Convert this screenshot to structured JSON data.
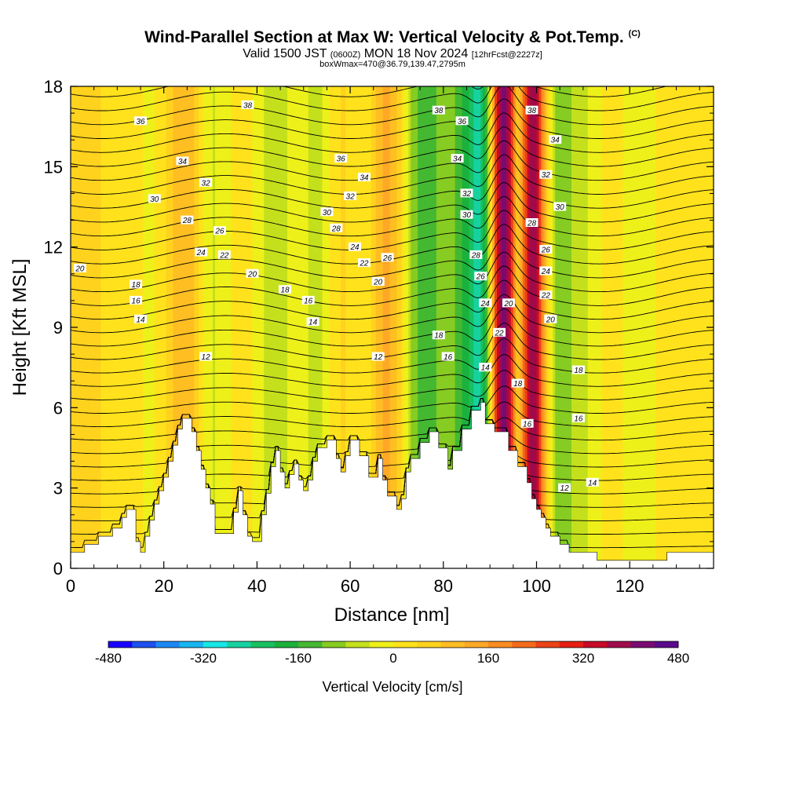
{
  "header": {
    "title": "Wind-Parallel Section at Max W: Vertical Velocity & Pot.Temp.",
    "copyright": "(C)",
    "valid_pre": "Valid 1500 JST",
    "valid_z": "(0600Z)",
    "valid_date": "MON 18 Nov 2024",
    "valid_fcst": "[12hrFcst@2227z]",
    "box_info": "boxWmax=470@36.79,139.47,2795m"
  },
  "colors": {
    "terrain": "#ffffff",
    "plot_bg": "#e6ea1e",
    "contour": "#000000",
    "scale": [
      "#1a00ff",
      "#1c50f0",
      "#1d88f5",
      "#18b5f0",
      "#17e6e6",
      "#16d2a0",
      "#18c060",
      "#1ab23c",
      "#45b832",
      "#86cc22",
      "#c4e01c",
      "#eef01a",
      "#ffe21c",
      "#ffd21e",
      "#ffbe22",
      "#ffa826",
      "#fb8c20",
      "#f46a1c",
      "#ec4216",
      "#e61e12",
      "#c80a28",
      "#a00a4a",
      "#7a0a72",
      "#5a0a8c"
    ]
  },
  "chart_data": {
    "type": "heatmap",
    "xlabel": "Distance [nm]",
    "ylabel": "Height [Kft MSL]",
    "xlim": [
      0,
      138
    ],
    "ylim": [
      0,
      18
    ],
    "xticks": [
      0,
      20,
      40,
      60,
      80,
      100,
      120
    ],
    "yticks": [
      0,
      3,
      6,
      9,
      12,
      15,
      18
    ],
    "colorbar": {
      "label": "Vertical Velocity [cm/s]",
      "range": [
        -480,
        480
      ],
      "ticks": [
        -480,
        -320,
        -160,
        0,
        160,
        320,
        480
      ]
    },
    "terrain": [
      [
        0,
        0.6
      ],
      [
        3,
        0.6
      ],
      [
        3,
        0.9
      ],
      [
        6,
        0.9
      ],
      [
        6,
        1.2
      ],
      [
        9,
        1.2
      ],
      [
        9,
        1.5
      ],
      [
        11,
        1.5
      ],
      [
        11,
        1.9
      ],
      [
        12,
        1.9
      ],
      [
        12,
        2.2
      ],
      [
        14,
        2.2
      ],
      [
        14,
        1.0
      ],
      [
        15,
        1.0
      ],
      [
        15,
        0.6
      ],
      [
        16,
        0.6
      ],
      [
        16,
        1.2
      ],
      [
        17,
        1.2
      ],
      [
        17,
        1.8
      ],
      [
        18,
        1.8
      ],
      [
        18,
        2.4
      ],
      [
        19,
        2.4
      ],
      [
        19,
        2.9
      ],
      [
        20,
        2.9
      ],
      [
        20,
        3.4
      ],
      [
        21,
        3.4
      ],
      [
        21,
        4.0
      ],
      [
        22,
        4.0
      ],
      [
        22,
        4.6
      ],
      [
        23,
        4.6
      ],
      [
        23,
        5.2
      ],
      [
        24,
        5.2
      ],
      [
        24,
        5.6
      ],
      [
        26,
        5.6
      ],
      [
        26,
        5.1
      ],
      [
        27,
        5.1
      ],
      [
        27,
        4.4
      ],
      [
        28,
        4.4
      ],
      [
        28,
        3.7
      ],
      [
        29,
        3.7
      ],
      [
        29,
        3.0
      ],
      [
        30,
        3.0
      ],
      [
        30,
        2.4
      ],
      [
        31,
        2.4
      ],
      [
        31,
        1.3
      ],
      [
        35,
        1.3
      ],
      [
        35,
        2.1
      ],
      [
        36,
        2.1
      ],
      [
        36,
        2.9
      ],
      [
        37,
        2.9
      ],
      [
        37,
        2.0
      ],
      [
        38,
        2.0
      ],
      [
        38,
        1.2
      ],
      [
        39,
        1.2
      ],
      [
        39,
        1.0
      ],
      [
        41,
        1.0
      ],
      [
        41,
        2.0
      ],
      [
        42,
        2.0
      ],
      [
        42,
        2.8
      ],
      [
        43,
        2.8
      ],
      [
        43,
        3.8
      ],
      [
        44,
        3.8
      ],
      [
        44,
        4.4
      ],
      [
        45,
        4.4
      ],
      [
        45,
        3.6
      ],
      [
        46,
        3.6
      ],
      [
        46,
        3.0
      ],
      [
        47,
        3.0
      ],
      [
        47,
        3.5
      ],
      [
        48,
        3.5
      ],
      [
        48,
        3.9
      ],
      [
        49,
        3.9
      ],
      [
        49,
        3.3
      ],
      [
        50,
        3.3
      ],
      [
        50,
        2.9
      ],
      [
        51,
        2.9
      ],
      [
        51,
        3.3
      ],
      [
        52,
        3.3
      ],
      [
        52,
        4.0
      ],
      [
        53,
        4.0
      ],
      [
        53,
        4.5
      ],
      [
        55,
        4.5
      ],
      [
        55,
        4.8
      ],
      [
        57,
        4.8
      ],
      [
        57,
        4.1
      ],
      [
        58,
        4.1
      ],
      [
        58,
        3.6
      ],
      [
        59,
        3.6
      ],
      [
        59,
        4.2
      ],
      [
        60,
        4.2
      ],
      [
        60,
        4.8
      ],
      [
        62,
        4.8
      ],
      [
        62,
        4.2
      ],
      [
        64,
        4.2
      ],
      [
        64,
        3.4
      ],
      [
        66,
        3.4
      ],
      [
        66,
        4.1
      ],
      [
        67,
        4.1
      ],
      [
        67,
        3.3
      ],
      [
        68,
        3.3
      ],
      [
        68,
        2.7
      ],
      [
        70,
        2.7
      ],
      [
        70,
        2.2
      ],
      [
        71,
        2.2
      ],
      [
        71,
        2.6
      ],
      [
        72,
        2.6
      ],
      [
        72,
        3.6
      ],
      [
        73,
        3.6
      ],
      [
        73,
        4.1
      ],
      [
        75,
        4.1
      ],
      [
        75,
        4.7
      ],
      [
        77,
        4.7
      ],
      [
        77,
        5.1
      ],
      [
        79,
        5.1
      ],
      [
        79,
        4.5
      ],
      [
        81,
        4.5
      ],
      [
        81,
        3.7
      ],
      [
        82,
        3.7
      ],
      [
        82,
        4.4
      ],
      [
        84,
        4.4
      ],
      [
        84,
        5.2
      ],
      [
        86,
        5.2
      ],
      [
        86,
        5.9
      ],
      [
        88,
        5.9
      ],
      [
        88,
        6.2
      ],
      [
        89,
        6.2
      ],
      [
        89,
        5.4
      ],
      [
        91,
        5.4
      ],
      [
        91,
        5.1
      ],
      [
        94,
        5.1
      ],
      [
        94,
        4.4
      ],
      [
        96,
        4.4
      ],
      [
        96,
        3.8
      ],
      [
        98,
        3.8
      ],
      [
        98,
        3.2
      ],
      [
        99,
        3.2
      ],
      [
        99,
        2.6
      ],
      [
        100,
        2.6
      ],
      [
        100,
        2.2
      ],
      [
        101,
        2.2
      ],
      [
        101,
        1.9
      ],
      [
        102,
        1.9
      ],
      [
        102,
        1.5
      ],
      [
        103,
        1.5
      ],
      [
        103,
        1.2
      ],
      [
        105,
        1.2
      ],
      [
        105,
        0.9
      ],
      [
        107,
        0.9
      ],
      [
        107,
        0.6
      ],
      [
        113,
        0.6
      ],
      [
        113,
        0.3
      ],
      [
        119,
        0.3
      ],
      [
        119,
        0.3
      ],
      [
        128,
        0.3
      ],
      [
        128,
        0.6
      ],
      [
        138,
        0.6
      ],
      [
        138,
        0
      ],
      [
        0,
        0
      ]
    ],
    "updrafts": [
      {
        "x": 93,
        "w": 5,
        "peak": 470
      },
      {
        "x": 99,
        "w": 5,
        "peak": 400
      },
      {
        "x": 68,
        "w": 9,
        "peak": 140
      },
      {
        "x": 24,
        "w": 9,
        "peak": 120
      },
      {
        "x": 3,
        "w": 10,
        "peak": 40
      },
      {
        "x": 58,
        "w": 8,
        "peak": 40
      },
      {
        "x": 114,
        "w": 11,
        "peak": 30
      },
      {
        "x": 131,
        "w": 10,
        "peak": 30
      }
    ],
    "downdrafts": [
      {
        "x": 96,
        "w": 3,
        "peak": -300
      },
      {
        "x": 89,
        "w": 4,
        "peak": -190
      },
      {
        "x": 86,
        "w": 6,
        "peak": -180
      },
      {
        "x": 74,
        "w": 6,
        "peak": -150
      },
      {
        "x": 104,
        "w": 5,
        "peak": -130
      },
      {
        "x": 79,
        "w": 6,
        "peak": -90
      },
      {
        "x": 110,
        "w": 7,
        "peak": -80
      },
      {
        "x": 19,
        "w": 6,
        "peak": -60
      },
      {
        "x": 30,
        "w": 5,
        "peak": -90
      },
      {
        "x": 44,
        "w": 5,
        "peak": -90
      },
      {
        "x": 53,
        "w": 5,
        "peak": -80
      },
      {
        "x": 63,
        "w": 5,
        "peak": -90
      },
      {
        "x": 122,
        "w": 6,
        "peak": -60
      }
    ],
    "isentrope_labels": [
      {
        "text": "20",
        "x": 2,
        "y": 11.2
      },
      {
        "text": "36",
        "x": 15,
        "y": 16.7
      },
      {
        "text": "34",
        "x": 24,
        "y": 15.2
      },
      {
        "text": "30",
        "x": 18,
        "y": 13.8
      },
      {
        "text": "32",
        "x": 29,
        "y": 14.4
      },
      {
        "text": "28",
        "x": 25,
        "y": 13.0
      },
      {
        "text": "26",
        "x": 32,
        "y": 12.6
      },
      {
        "text": "24",
        "x": 28,
        "y": 11.8
      },
      {
        "text": "22",
        "x": 33,
        "y": 11.7
      },
      {
        "text": "20",
        "x": 39,
        "y": 11.0
      },
      {
        "text": "18",
        "x": 14,
        "y": 10.6
      },
      {
        "text": "16",
        "x": 14,
        "y": 10.0
      },
      {
        "text": "14",
        "x": 15,
        "y": 9.3
      },
      {
        "text": "12",
        "x": 29,
        "y": 7.9
      },
      {
        "text": "38",
        "x": 38,
        "y": 17.3
      },
      {
        "text": "36",
        "x": 58,
        "y": 15.3
      },
      {
        "text": "34",
        "x": 63,
        "y": 14.6
      },
      {
        "text": "32",
        "x": 60,
        "y": 13.9
      },
      {
        "text": "30",
        "x": 55,
        "y": 13.3
      },
      {
        "text": "28",
        "x": 57,
        "y": 12.7
      },
      {
        "text": "24",
        "x": 61,
        "y": 12.0
      },
      {
        "text": "22",
        "x": 63,
        "y": 11.4
      },
      {
        "text": "26",
        "x": 68,
        "y": 11.6
      },
      {
        "text": "20",
        "x": 66,
        "y": 10.7
      },
      {
        "text": "18",
        "x": 46,
        "y": 10.4
      },
      {
        "text": "16",
        "x": 51,
        "y": 10.0
      },
      {
        "text": "14",
        "x": 52,
        "y": 9.2
      },
      {
        "text": "12",
        "x": 66,
        "y": 7.9
      },
      {
        "text": "38",
        "x": 79,
        "y": 17.1
      },
      {
        "text": "36",
        "x": 84,
        "y": 16.7
      },
      {
        "text": "34",
        "x": 83,
        "y": 15.3
      },
      {
        "text": "32",
        "x": 85,
        "y": 14.0
      },
      {
        "text": "30",
        "x": 85,
        "y": 13.2
      },
      {
        "text": "28",
        "x": 87,
        "y": 11.7
      },
      {
        "text": "26",
        "x": 88,
        "y": 10.9
      },
      {
        "text": "24",
        "x": 89,
        "y": 9.9
      },
      {
        "text": "20",
        "x": 94,
        "y": 9.9
      },
      {
        "text": "22",
        "x": 92,
        "y": 8.8
      },
      {
        "text": "18",
        "x": 79,
        "y": 8.7
      },
      {
        "text": "16",
        "x": 81,
        "y": 7.9
      },
      {
        "text": "14",
        "x": 89,
        "y": 7.5
      },
      {
        "text": "18",
        "x": 96,
        "y": 6.9
      },
      {
        "text": "16",
        "x": 98,
        "y": 5.4
      },
      {
        "text": "38",
        "x": 99,
        "y": 17.1
      },
      {
        "text": "34",
        "x": 104,
        "y": 16.0
      },
      {
        "text": "32",
        "x": 102,
        "y": 14.7
      },
      {
        "text": "30",
        "x": 105,
        "y": 13.5
      },
      {
        "text": "28",
        "x": 99,
        "y": 12.9
      },
      {
        "text": "26",
        "x": 102,
        "y": 11.9
      },
      {
        "text": "24",
        "x": 102,
        "y": 11.1
      },
      {
        "text": "22",
        "x": 102,
        "y": 10.2
      },
      {
        "text": "20",
        "x": 103,
        "y": 9.3
      },
      {
        "text": "18",
        "x": 109,
        "y": 7.4
      },
      {
        "text": "16",
        "x": 109,
        "y": 5.6
      },
      {
        "text": "14",
        "x": 112,
        "y": 3.2
      },
      {
        "text": "12",
        "x": 106,
        "y": 3.0
      }
    ]
  }
}
